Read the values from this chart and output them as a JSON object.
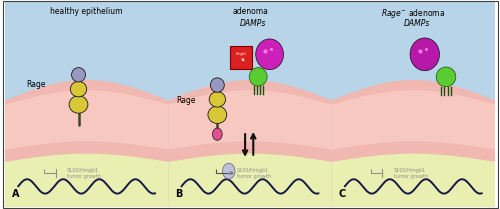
{
  "panel_titles": [
    "healthy epithelium",
    "adenoma"
  ],
  "panel_labels": [
    "A",
    "B",
    "C"
  ],
  "sky_color": "#b8d4e8",
  "tissue_pink_color": "#f0b8b0",
  "tissue_light_color": "#fad0c8",
  "subepithelial_color": "#e8efb0",
  "rage_stem_color": "#384820",
  "rage_yellow_color": "#d8c838",
  "rage_gray_color": "#9898c0",
  "rage_outline": "#181818",
  "damps_label": "DAMPs",
  "rage_label": "Rage",
  "bg_color": "#ffffff",
  "wave_color": "#181848",
  "text_color_gray": "#909090",
  "arrow_color": "#101010",
  "pink_blob_color": "#cc20b8",
  "green_blob_color": "#58cc30",
  "hmgb1_box_color": "#dd2020",
  "active_dot_color": "#e05090",
  "small_circle_color": "#c0c0d8",
  "small_circle_edge": "#707090"
}
